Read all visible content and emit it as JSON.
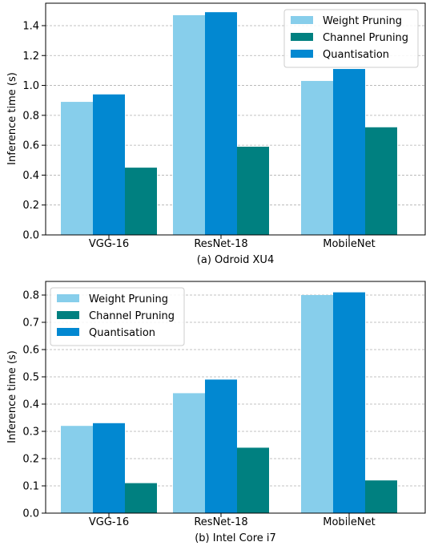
{
  "colors": {
    "weight_pruning": "#87ceeb",
    "channel_pruning": "#008080",
    "quantisation": "#0288d1",
    "grid": "#b0b0b0",
    "legend_border": "#cccccc"
  },
  "chart_data": [
    {
      "type": "bar",
      "caption": "(a) Odroid XU4",
      "ylabel": "Inference time (s)",
      "categories": [
        "VGG-16",
        "ResNet-18",
        "MobileNet"
      ],
      "series": [
        {
          "name": "Weight Pruning",
          "values": [
            0.89,
            1.47,
            1.03
          ]
        },
        {
          "name": "Quantisation",
          "values": [
            0.94,
            1.49,
            1.11
          ]
        },
        {
          "name": "Channel Pruning",
          "values": [
            0.45,
            0.59,
            0.72
          ]
        }
      ],
      "legend_order": [
        "Weight Pruning",
        "Channel Pruning",
        "Quantisation"
      ],
      "yticks": [
        "0.0",
        "0.2",
        "0.4",
        "0.6",
        "0.8",
        "1.0",
        "1.2",
        "1.4"
      ],
      "ylim": [
        0,
        1.55
      ],
      "grid": "horizontal dashed",
      "legend_position": "top-right"
    },
    {
      "type": "bar",
      "caption": "(b) Intel Core i7",
      "ylabel": "Inference time (s)",
      "categories": [
        "VGG-16",
        "ResNet-18",
        "MobileNet"
      ],
      "series": [
        {
          "name": "Weight Pruning",
          "values": [
            0.32,
            0.44,
            0.8
          ]
        },
        {
          "name": "Quantisation",
          "values": [
            0.33,
            0.49,
            0.81
          ]
        },
        {
          "name": "Channel Pruning",
          "values": [
            0.11,
            0.24,
            0.12
          ]
        }
      ],
      "legend_order": [
        "Weight Pruning",
        "Channel Pruning",
        "Quantisation"
      ],
      "yticks": [
        "0.0",
        "0.1",
        "0.2",
        "0.3",
        "0.4",
        "0.5",
        "0.6",
        "0.7",
        "0.8"
      ],
      "ylim": [
        0,
        0.85
      ],
      "grid": "horizontal dashed",
      "legend_position": "top-left"
    }
  ]
}
